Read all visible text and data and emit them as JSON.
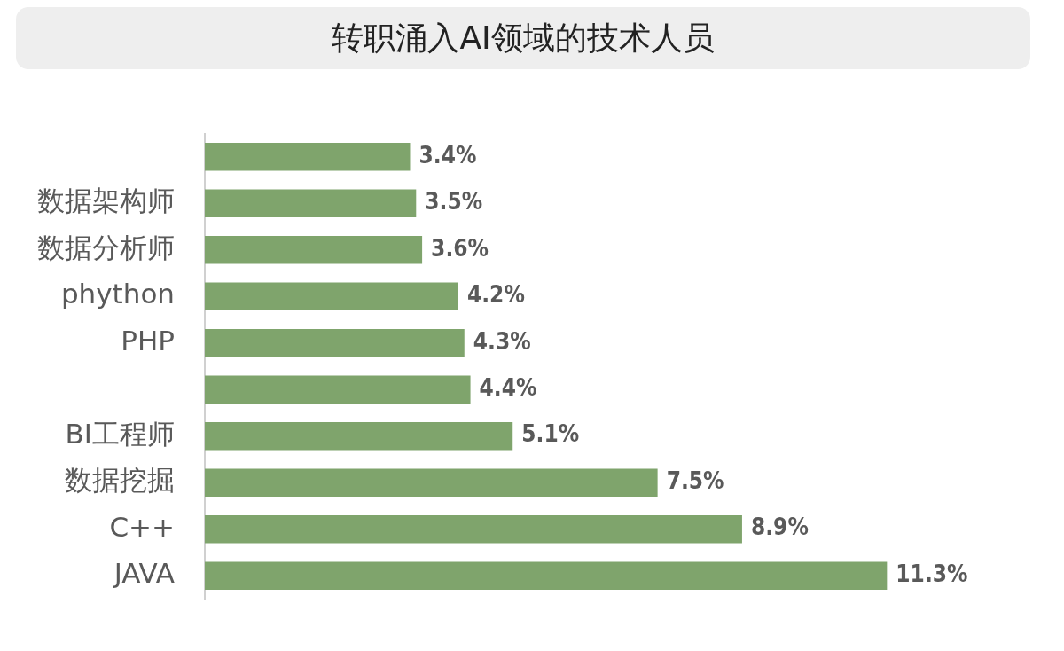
{
  "chart_data": {
    "type": "bar",
    "title": "转职涌入AI领域的技术人员",
    "orientation": "horizontal",
    "categories": [
      null,
      "数据架构师",
      "数据分析师",
      "phython",
      "PHP",
      null,
      "BI工程师",
      "数据挖掘",
      "C++",
      "JAVA"
    ],
    "values": [
      3.4,
      3.5,
      3.6,
      4.2,
      4.3,
      4.4,
      5.1,
      7.5,
      8.9,
      11.3
    ],
    "value_labels": [
      "3.4%",
      "3.5%",
      "3.6%",
      "4.2%",
      "4.3%",
      "4.4%",
      "5.1%",
      "7.5%",
      "8.9%",
      "11.3%"
    ],
    "color": "#7fa46c",
    "tick_labels": "y"
  }
}
